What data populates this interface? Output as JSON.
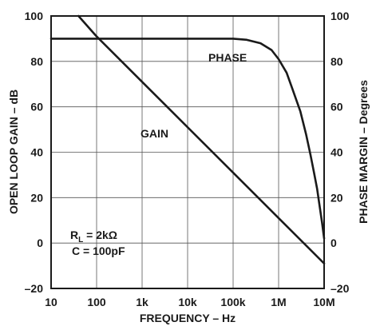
{
  "chart_data": {
    "type": "line",
    "x_scale": "log",
    "grid": true,
    "x_ticks": [
      10,
      100,
      1000,
      10000,
      100000,
      1000000,
      10000000
    ],
    "x_tick_labels": [
      "10",
      "100",
      "1k",
      "10k",
      "100k",
      "1M",
      "10M"
    ],
    "xlabel": "FREQUENCY – Hz",
    "xlim": [
      10,
      10000000
    ],
    "y_left": {
      "label": "OPEN LOOP GAIN – dB",
      "ticks": [
        -20,
        0,
        20,
        40,
        60,
        80,
        100
      ],
      "tick_labels": [
        "–20",
        "0",
        "20",
        "40",
        "60",
        "80",
        "100"
      ],
      "lim": [
        -20,
        100
      ]
    },
    "y_right": {
      "label": "PHASE MARGIN – Degrees",
      "ticks": [
        -20,
        0,
        20,
        40,
        60,
        80,
        100
      ],
      "tick_labels": [
        "–20",
        "0",
        "20",
        "40",
        "60",
        "80",
        "100"
      ],
      "lim": [
        -20,
        100
      ]
    },
    "series": [
      {
        "name": "GAIN",
        "axis": "left",
        "x": [
          40,
          100,
          1000,
          10000,
          100000,
          1000000,
          10000000
        ],
        "y": [
          100,
          91,
          71,
          51,
          31,
          11,
          -9
        ]
      },
      {
        "name": "PHASE",
        "axis": "right",
        "x": [
          10,
          1000,
          100000,
          200000,
          400000,
          700000,
          1000000,
          1500000,
          2000000,
          3000000,
          4000000,
          5000000,
          6000000,
          7000000,
          8000000,
          9000000,
          10000000
        ],
        "y": [
          90,
          90,
          90,
          89.5,
          88,
          85,
          81,
          75,
          68,
          58,
          48,
          39,
          31,
          24,
          16,
          9,
          2
        ]
      }
    ],
    "annotations": {
      "phase_label": "PHASE",
      "gain_label": "GAIN",
      "cond_line1_main": "R",
      "cond_line1_sub": "L",
      "cond_line1_rest": " = 2kΩ",
      "cond_line2": "C = 100pF"
    }
  }
}
